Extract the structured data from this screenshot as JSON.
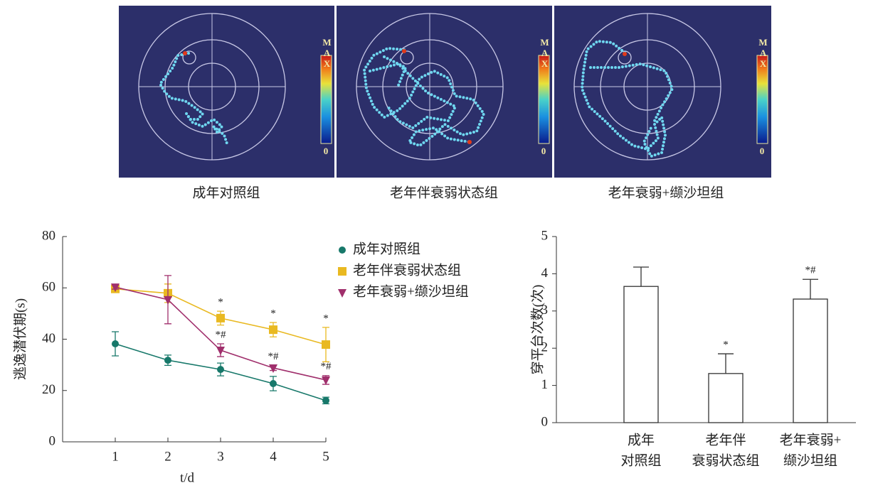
{
  "panels": [
    "成年对照组",
    "老年伴衰弱状态组",
    "老年衰弱+缬沙坦组"
  ],
  "colorbar": {
    "max_label": "MAX",
    "min_label": "0"
  },
  "chart_data": [
    {
      "type": "line",
      "xlabel": "t/d",
      "ylabel": "逃逸潜伏期(s)",
      "x": [
        1,
        2,
        3,
        4,
        5
      ],
      "xlim": [
        0,
        5
      ],
      "xticks": [
        1,
        2,
        3,
        4,
        5
      ],
      "ylim": [
        0,
        80
      ],
      "yticks": [
        0,
        20,
        40,
        60,
        80
      ],
      "series": [
        {
          "name": "成年对照组",
          "color": "#17786a",
          "marker": "circle",
          "values": [
            38.2,
            31.8,
            28.2,
            22.7,
            16.1
          ],
          "errors": [
            4.7,
            2.0,
            2.5,
            2.8,
            1.3
          ],
          "markers": [
            null,
            null,
            null,
            null,
            null
          ]
        },
        {
          "name": "老年伴衰弱状态组",
          "color": "#e9b921",
          "marker": "square",
          "values": [
            59.6,
            57.9,
            48.2,
            43.7,
            37.9
          ],
          "errors": [
            1.0,
            3.6,
            2.7,
            2.8,
            6.7
          ],
          "markers": [
            null,
            null,
            "*",
            "*",
            "*"
          ]
        },
        {
          "name": "老年衰弱+缬沙坦组",
          "color": "#a02f6c",
          "marker": "triangle-down",
          "values": [
            60.3,
            55.4,
            35.7,
            28.8,
            24.1
          ],
          "errors": [
            0.8,
            9.4,
            2.5,
            1.0,
            1.7
          ],
          "markers": [
            null,
            null,
            "*#",
            "*#",
            "*#"
          ]
        }
      ]
    },
    {
      "type": "bar",
      "ylabel": "穿平台次数(次)",
      "categories": [
        [
          "成年",
          "对照组"
        ],
        [
          "老年伴",
          "衰弱状态组"
        ],
        [
          "老年衰弱+",
          "缬沙坦组"
        ]
      ],
      "values": [
        3.66,
        1.32,
        3.32
      ],
      "errors": [
        0.52,
        0.53,
        0.53
      ],
      "markers": [
        null,
        "*",
        "*#"
      ],
      "color": "#ffffff",
      "ylim": [
        0,
        5
      ],
      "yticks": [
        0,
        1,
        2,
        3,
        4,
        5
      ]
    }
  ]
}
